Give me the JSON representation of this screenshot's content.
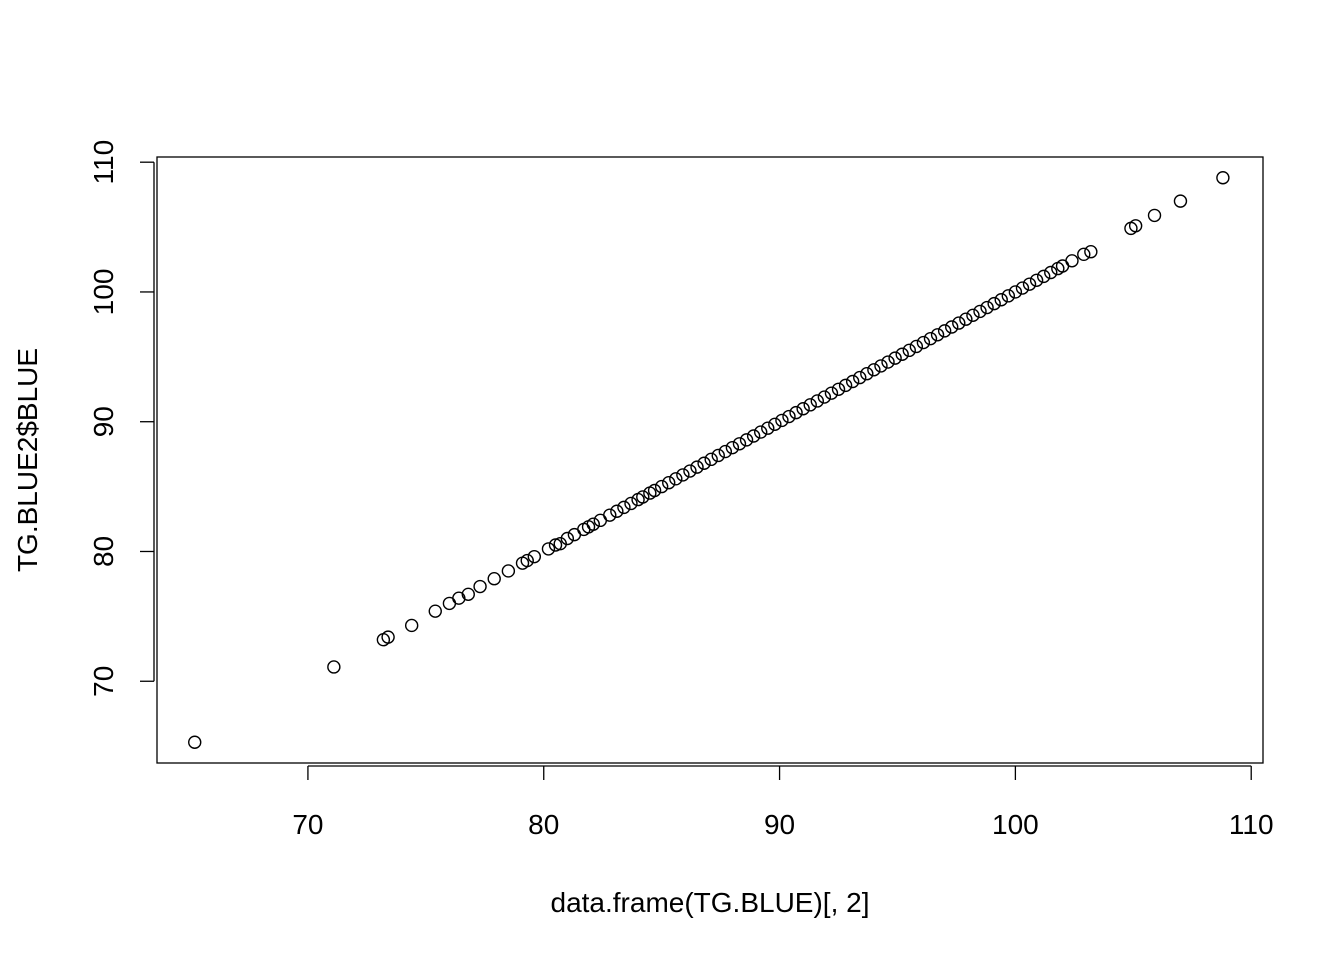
{
  "chart_data": {
    "type": "scatter",
    "title": "",
    "xlabel": "data.frame(TG.BLUE)[, 2]",
    "ylabel": "TG.BLUE2$BLUE",
    "xlim": [
      63.6,
      110.5
    ],
    "ylim": [
      63.7,
      110.4
    ],
    "xticks": [
      70,
      80,
      90,
      100,
      110
    ],
    "yticks": [
      70,
      80,
      90,
      100,
      110
    ],
    "xtick_labels": [
      "70",
      "80",
      "90",
      "100",
      "110"
    ],
    "ytick_labels": [
      "70",
      "80",
      "90",
      "100",
      "110"
    ],
    "grid": false,
    "marker": "open-circle",
    "series": [
      {
        "points": [
          [
            65.2,
            65.3
          ],
          [
            71.1,
            71.1
          ],
          [
            73.2,
            73.2
          ],
          [
            73.4,
            73.4
          ],
          [
            74.4,
            74.3
          ],
          [
            75.4,
            75.4
          ],
          [
            76.0,
            76.0
          ],
          [
            76.4,
            76.4
          ],
          [
            76.8,
            76.7
          ],
          [
            77.3,
            77.3
          ],
          [
            77.9,
            77.9
          ],
          [
            78.5,
            78.5
          ],
          [
            79.1,
            79.1
          ],
          [
            79.3,
            79.3
          ],
          [
            79.6,
            79.6
          ],
          [
            80.2,
            80.2
          ],
          [
            80.5,
            80.5
          ],
          [
            80.7,
            80.6
          ],
          [
            81.0,
            81.0
          ],
          [
            81.3,
            81.3
          ],
          [
            81.7,
            81.7
          ],
          [
            81.9,
            81.9
          ],
          [
            82.1,
            82.1
          ],
          [
            82.4,
            82.4
          ],
          [
            82.8,
            82.8
          ],
          [
            83.1,
            83.1
          ],
          [
            83.4,
            83.4
          ],
          [
            83.7,
            83.7
          ],
          [
            84.0,
            84.0
          ],
          [
            84.2,
            84.2
          ],
          [
            84.5,
            84.5
          ],
          [
            84.7,
            84.7
          ],
          [
            85.0,
            85.0
          ],
          [
            85.3,
            85.3
          ],
          [
            85.6,
            85.6
          ],
          [
            85.9,
            85.9
          ],
          [
            86.2,
            86.2
          ],
          [
            86.5,
            86.5
          ],
          [
            86.8,
            86.8
          ],
          [
            87.1,
            87.1
          ],
          [
            87.4,
            87.4
          ],
          [
            87.7,
            87.7
          ],
          [
            88.0,
            88.0
          ],
          [
            88.3,
            88.3
          ],
          [
            88.6,
            88.6
          ],
          [
            88.9,
            88.9
          ],
          [
            89.2,
            89.2
          ],
          [
            89.5,
            89.5
          ],
          [
            89.8,
            89.8
          ],
          [
            90.1,
            90.1
          ],
          [
            90.4,
            90.4
          ],
          [
            90.7,
            90.7
          ],
          [
            91.0,
            91.0
          ],
          [
            91.3,
            91.3
          ],
          [
            91.6,
            91.6
          ],
          [
            91.9,
            91.9
          ],
          [
            92.2,
            92.2
          ],
          [
            92.5,
            92.5
          ],
          [
            92.8,
            92.8
          ],
          [
            93.1,
            93.1
          ],
          [
            93.4,
            93.4
          ],
          [
            93.7,
            93.7
          ],
          [
            94.0,
            94.0
          ],
          [
            94.3,
            94.3
          ],
          [
            94.6,
            94.6
          ],
          [
            94.9,
            94.9
          ],
          [
            95.2,
            95.2
          ],
          [
            95.5,
            95.5
          ],
          [
            95.8,
            95.8
          ],
          [
            96.1,
            96.1
          ],
          [
            96.4,
            96.4
          ],
          [
            96.7,
            96.7
          ],
          [
            97.0,
            97.0
          ],
          [
            97.3,
            97.3
          ],
          [
            97.6,
            97.6
          ],
          [
            97.9,
            97.9
          ],
          [
            98.2,
            98.2
          ],
          [
            98.5,
            98.5
          ],
          [
            98.8,
            98.8
          ],
          [
            99.1,
            99.1
          ],
          [
            99.4,
            99.4
          ],
          [
            99.7,
            99.7
          ],
          [
            100.0,
            100.0
          ],
          [
            100.3,
            100.3
          ],
          [
            100.6,
            100.6
          ],
          [
            100.9,
            100.9
          ],
          [
            101.2,
            101.2
          ],
          [
            101.5,
            101.5
          ],
          [
            101.8,
            101.8
          ],
          [
            102.0,
            102.0
          ],
          [
            102.4,
            102.4
          ],
          [
            102.9,
            102.9
          ],
          [
            103.2,
            103.1
          ],
          [
            104.9,
            104.9
          ],
          [
            105.1,
            105.1
          ],
          [
            105.9,
            105.9
          ],
          [
            107.0,
            107.0
          ],
          [
            108.8,
            108.8
          ]
        ]
      }
    ]
  }
}
